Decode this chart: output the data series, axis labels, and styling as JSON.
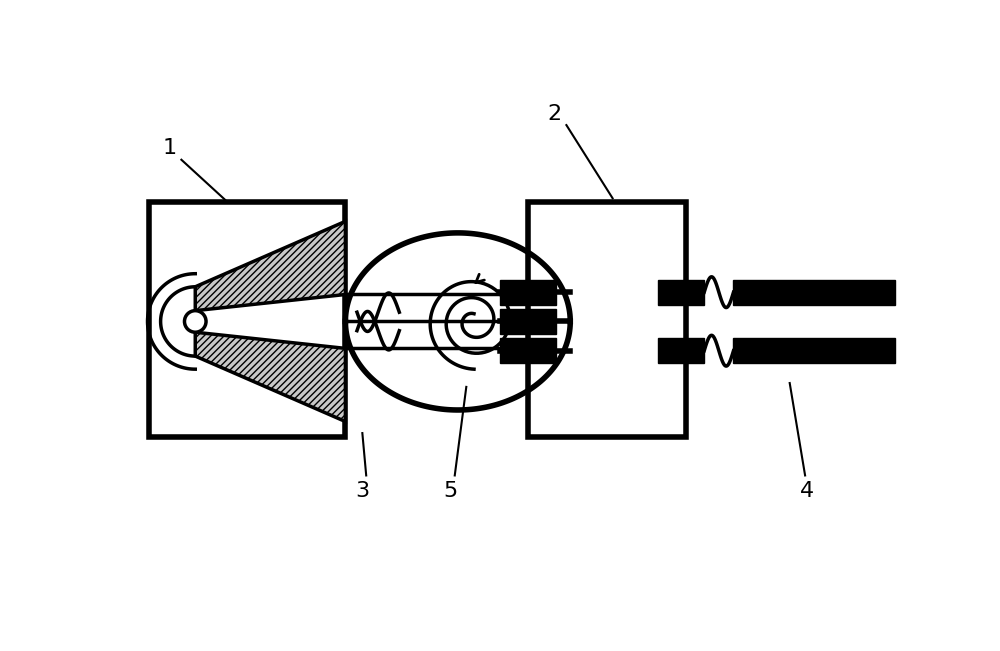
{
  "bg_color": "#ffffff",
  "black": "#000000",
  "gray_hatch": "#aaaaaa",
  "lw_main": 2.5,
  "lw_thick": 4.0,
  "label_fontsize": 16,
  "fig_w": 10.0,
  "fig_h": 6.51,
  "xlim": [
    0,
    10
  ],
  "ylim": [
    0,
    6.51
  ]
}
